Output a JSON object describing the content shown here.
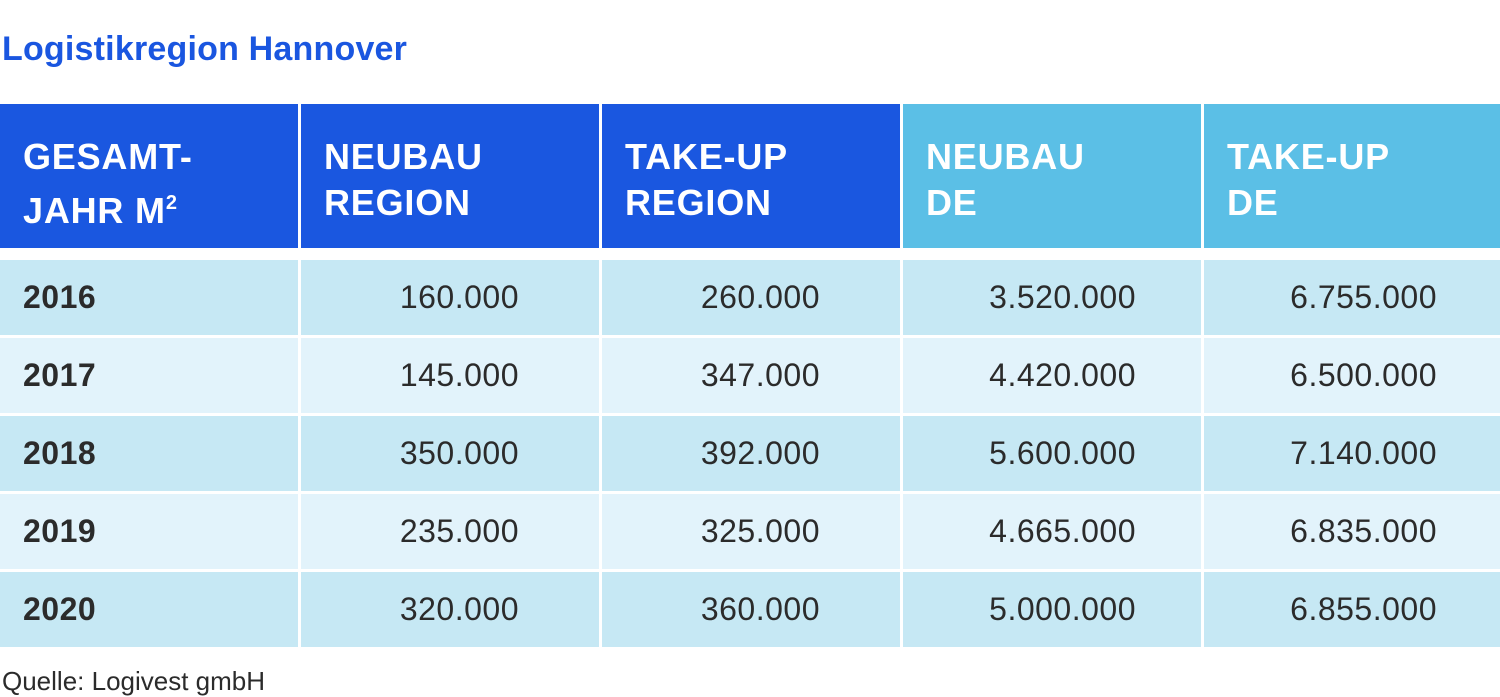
{
  "title": "Logistikregion Hannover",
  "colors": {
    "title": "#1a56e0",
    "header_dark": "#1a57e0",
    "header_light": "#5bbfe6",
    "row_odd": "#c6e8f4",
    "row_even": "#e2f3fb"
  },
  "table": {
    "headers": [
      {
        "line1": "GESAMT-",
        "line2": "JAHR M",
        "sup": "2"
      },
      {
        "line1": "NEUBAU",
        "line2": "REGION"
      },
      {
        "line1": "TAKE-UP",
        "line2": "REGION"
      },
      {
        "line1": "NEUBAU",
        "line2": "DE"
      },
      {
        "line1": "TAKE-UP",
        "line2": "DE"
      }
    ],
    "rows": [
      [
        "2016",
        "160.000",
        "260.000",
        "3.520.000",
        "6.755.000"
      ],
      [
        "2017",
        "145.000",
        "347.000",
        "4.420.000",
        "6.500.000"
      ],
      [
        "2018",
        "350.000",
        "392.000",
        "5.600.000",
        "7.140.000"
      ],
      [
        "2019",
        "235.000",
        "325.000",
        "4.665.000",
        "6.835.000"
      ],
      [
        "2020",
        "320.000",
        "360.000",
        "5.000.000",
        "6.855.000"
      ]
    ]
  },
  "source": "Quelle: Logivest gmbH"
}
